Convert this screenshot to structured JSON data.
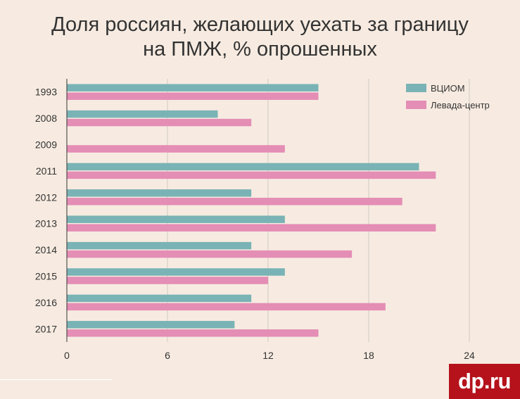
{
  "logo_text": "dp.ru",
  "colors": {
    "background": "#f7ebe1",
    "vciom": "#7ab3b5",
    "levada": "#e48db5",
    "grid": "#cfcac4",
    "logo_bg": "#b5121b"
  },
  "chart_data": {
    "type": "bar",
    "orientation": "horizontal",
    "title_lines": [
      "Доля россиян, желающих уехать за границу",
      "на ПМЖ, % опрошенных"
    ],
    "categories": [
      "1993",
      "2008",
      "2009",
      "2011",
      "2012",
      "2013",
      "2014",
      "2015",
      "2016",
      "2017"
    ],
    "series": [
      {
        "name": "ВЦИОМ",
        "values": [
          15,
          9,
          null,
          21,
          11,
          13,
          11,
          13,
          11,
          10
        ]
      },
      {
        "name": "Левада-центр",
        "values": [
          15,
          11,
          13,
          22,
          20,
          22,
          17,
          12,
          19,
          15
        ]
      }
    ],
    "xlim": [
      0,
      24
    ],
    "xticks": [
      0,
      6,
      12,
      18,
      24
    ],
    "xlabel": "",
    "ylabel": "",
    "grid": true,
    "legend_position": "top-right"
  }
}
